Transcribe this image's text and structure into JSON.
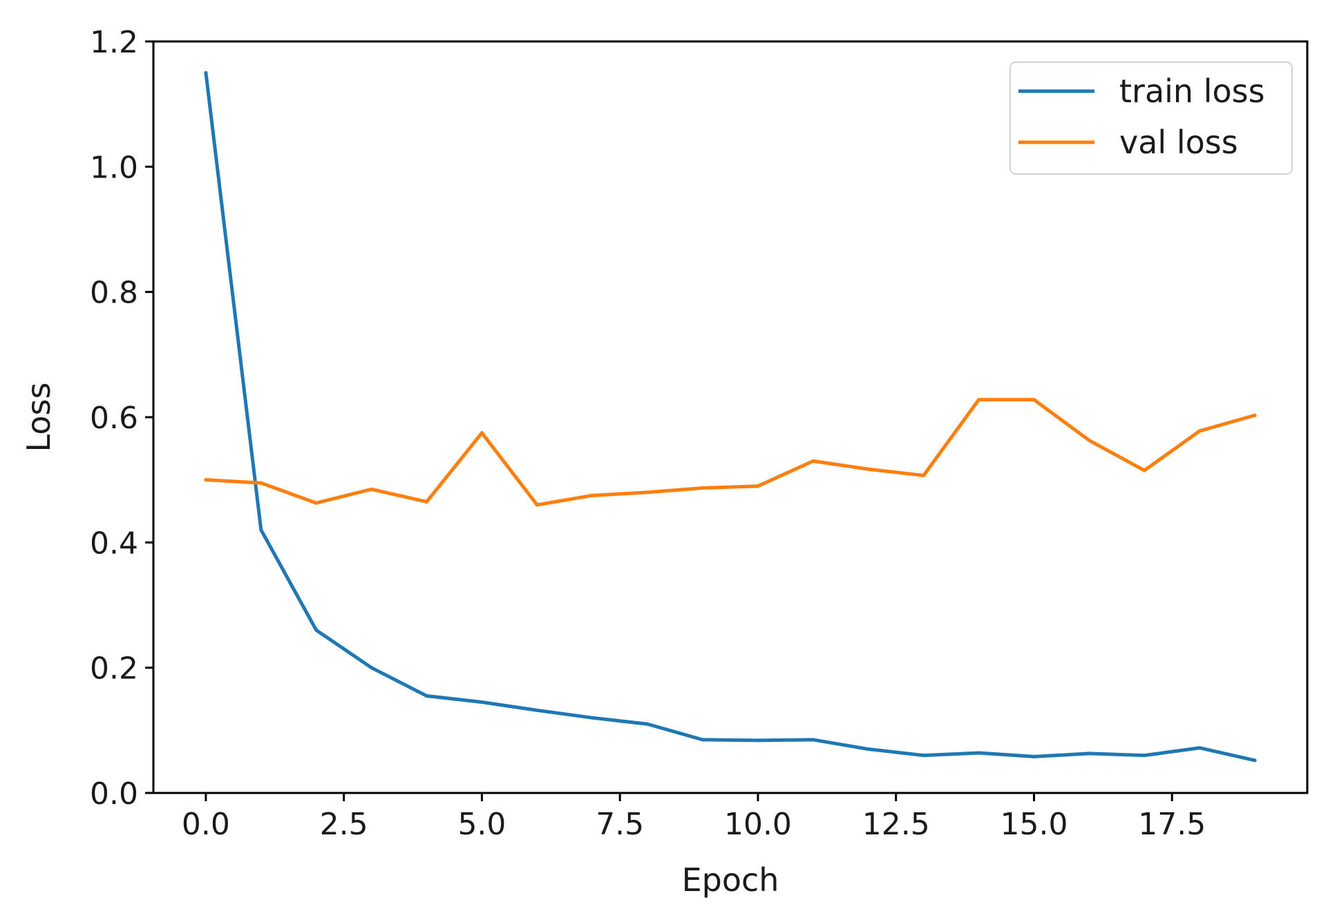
{
  "chart_data": {
    "type": "line",
    "xlabel": "Epoch",
    "ylabel": "Loss",
    "xlim": [
      -0.95,
      19.95
    ],
    "ylim": [
      0.0,
      1.2
    ],
    "xticks": [
      "0.0",
      "2.5",
      "5.0",
      "7.5",
      "10.0",
      "12.5",
      "15.0",
      "17.5"
    ],
    "yticks": [
      "0.0",
      "0.2",
      "0.4",
      "0.6",
      "0.8",
      "1.0",
      "1.2"
    ],
    "legend": {
      "placement": "top-right"
    },
    "grid": false,
    "x": [
      0,
      1,
      2,
      3,
      4,
      5,
      6,
      7,
      8,
      9,
      10,
      11,
      12,
      13,
      14,
      15,
      16,
      17,
      18,
      19
    ],
    "series": [
      {
        "name": "train loss",
        "color": "#1f77b4",
        "values": [
          1.15,
          0.42,
          0.26,
          0.2,
          0.155,
          0.145,
          0.132,
          0.12,
          0.11,
          0.085,
          0.084,
          0.085,
          0.07,
          0.06,
          0.064,
          0.058,
          0.063,
          0.06,
          0.072,
          0.052
        ]
      },
      {
        "name": "val loss",
        "color": "#ff7f0e",
        "values": [
          0.5,
          0.495,
          0.463,
          0.485,
          0.465,
          0.575,
          0.46,
          0.475,
          0.48,
          0.487,
          0.49,
          0.53,
          0.517,
          0.507,
          0.628,
          0.628,
          0.563,
          0.515,
          0.578,
          0.603
        ]
      }
    ]
  }
}
